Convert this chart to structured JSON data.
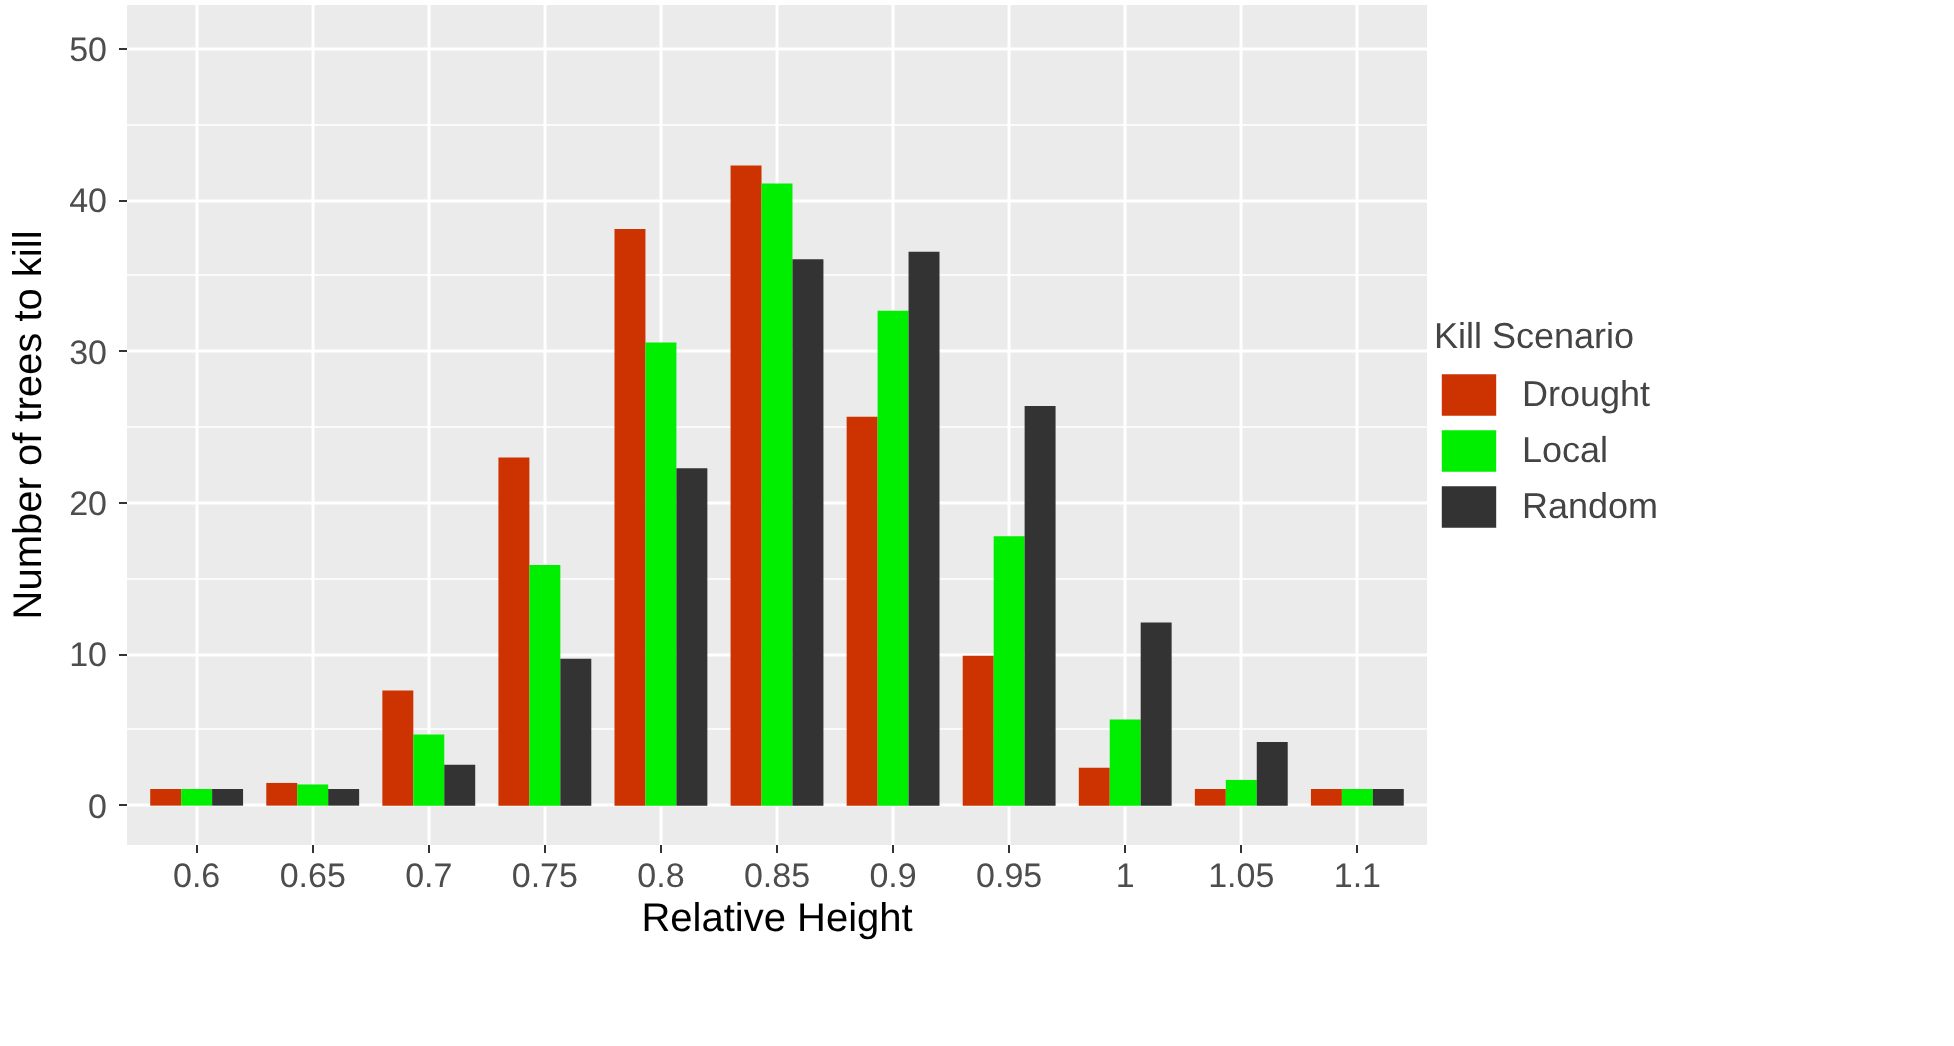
{
  "chart_data": {
    "type": "bar",
    "xlabel": "Relative Height",
    "ylabel": "Number of trees to kill",
    "legend_title": "Kill Scenario",
    "categories": [
      "0.6",
      "0.65",
      "0.7",
      "0.75",
      "0.8",
      "0.85",
      "0.9",
      "0.95",
      "1",
      "1.05",
      "1.1"
    ],
    "series": [
      {
        "name": "Drought",
        "color": "#cc3300",
        "values": [
          1.1,
          1.5,
          7.6,
          23.0,
          38.1,
          42.3,
          25.7,
          9.9,
          2.5,
          1.1,
          1.1
        ]
      },
      {
        "name": "Local",
        "color": "#00ee00",
        "values": [
          1.1,
          1.4,
          4.7,
          15.9,
          30.6,
          41.1,
          32.7,
          17.8,
          5.7,
          1.7,
          1.1
        ]
      },
      {
        "name": "Random",
        "color": "#333333",
        "values": [
          1.1,
          1.1,
          2.7,
          9.7,
          22.3,
          36.1,
          36.6,
          26.4,
          12.1,
          4.2,
          1.1
        ]
      }
    ],
    "ylim": [
      -2.6,
      52.9
    ],
    "yticks": [
      0,
      10,
      20,
      30,
      40,
      50
    ],
    "grid": true,
    "legend": "right"
  }
}
